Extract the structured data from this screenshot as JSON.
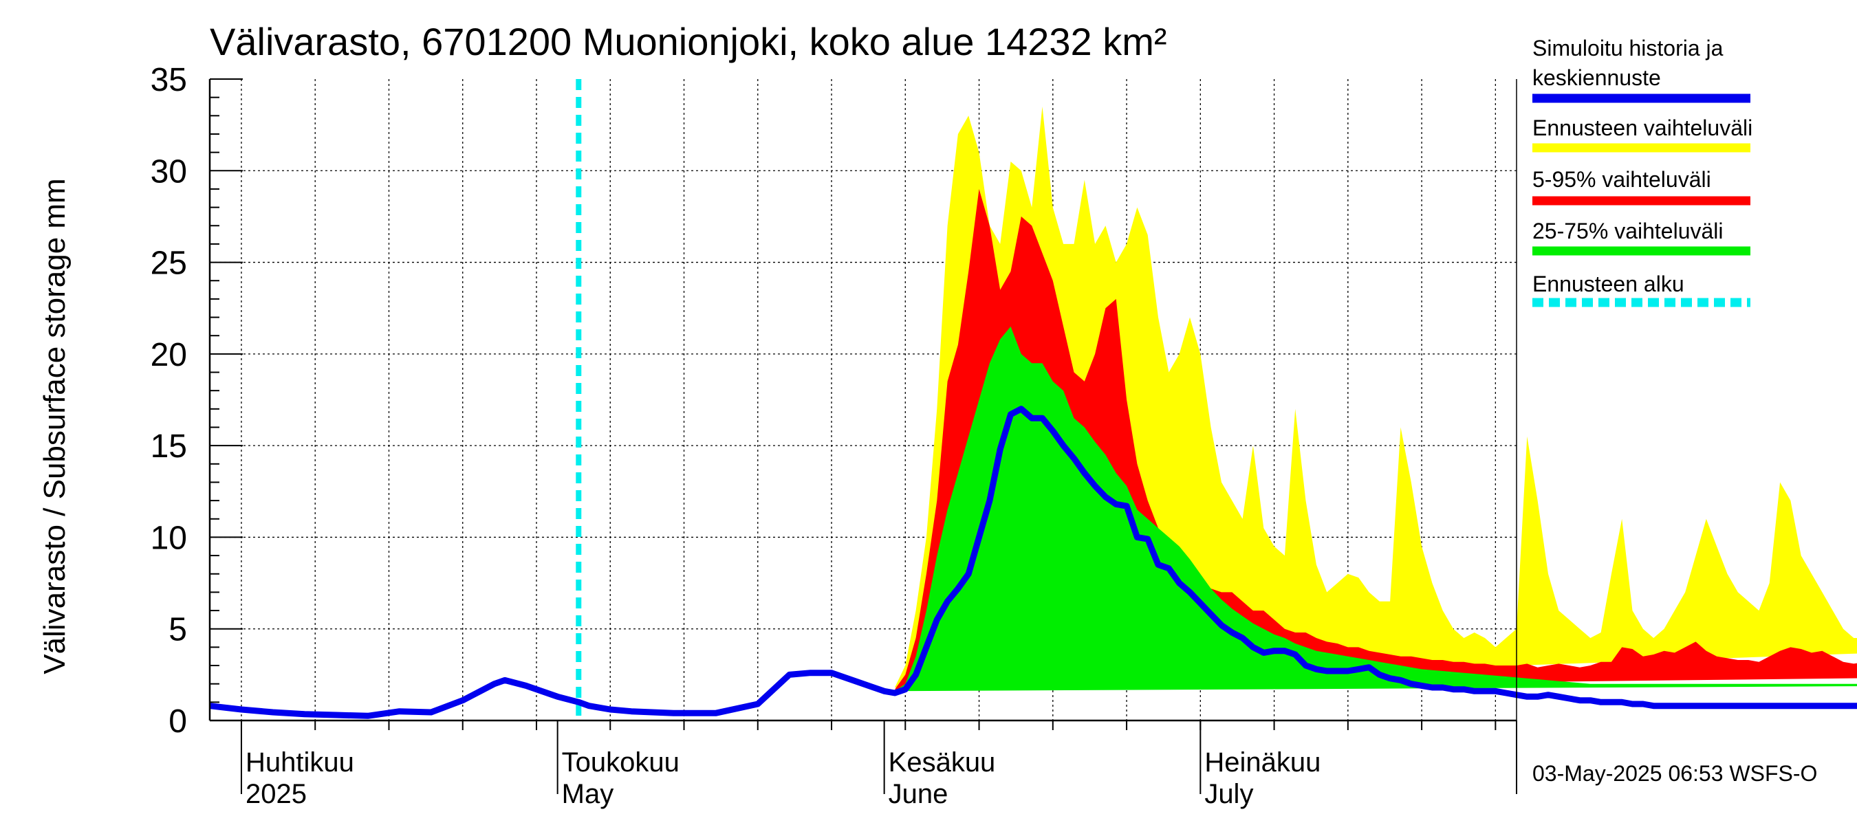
{
  "chart_data": {
    "type": "area",
    "title": "Välivarasto, 6701200 Muonionjoki, koko alue 14232 km²",
    "ylabel": "Välivarasto / Subsurface storage  mm",
    "ylim": [
      0,
      35
    ],
    "yticks": [
      0,
      5,
      10,
      15,
      20,
      25,
      30,
      35
    ],
    "grid": true,
    "legend_placement": "right",
    "x_range": [
      "2025-03-29",
      "2025-07-31"
    ],
    "forecast_start": "2025-05-03",
    "month_labels": [
      {
        "date": "2025-04-01",
        "line1": "Huhtikuu",
        "line2": "2025"
      },
      {
        "date": "2025-05-01",
        "line1": "Toukokuu",
        "line2": "May"
      },
      {
        "date": "2025-06-01",
        "line1": "Kesäkuu",
        "line2": "June"
      },
      {
        "date": "2025-07-01",
        "line1": "Heinäkuu",
        "line2": "July"
      }
    ],
    "legend": [
      {
        "label_lines": [
          "Simuloitu historia ja",
          "keskiennuste"
        ],
        "color": "#0000ee",
        "style": "solid"
      },
      {
        "label_lines": [
          "Ennusteen vaihteluväli"
        ],
        "color": "#ffff00",
        "style": "solid"
      },
      {
        "label_lines": [
          "5-95% vaihteluväli"
        ],
        "color": "#ff0000",
        "style": "solid"
      },
      {
        "label_lines": [
          "25-75% vaihteluväli"
        ],
        "color": "#00ee00",
        "style": "solid"
      },
      {
        "label_lines": [
          "Ennusteen alku"
        ],
        "color": "#00eeee",
        "style": "dashed"
      }
    ],
    "colors": {
      "median": "#0000ee",
      "full_range": "#ffff00",
      "p5_95": "#ff0000",
      "p25_75": "#00ee00",
      "forecast_start": "#00eeee"
    },
    "history": {
      "days": [
        0,
        3,
        6,
        9,
        12,
        15,
        18,
        21,
        24,
        27,
        28,
        30,
        33,
        35,
        36,
        38,
        40,
        44,
        48,
        52,
        55,
        57,
        59,
        61,
        63,
        64,
        65
      ],
      "values": [
        0.8,
        0.6,
        0.45,
        0.35,
        0.3,
        0.25,
        0.5,
        0.45,
        1.1,
        2.0,
        2.2,
        1.9,
        1.3,
        1.0,
        0.8,
        0.6,
        0.5,
        0.4,
        0.4,
        0.9,
        2.5,
        2.6,
        2.6,
        2.2,
        1.8,
        1.6,
        1.5
      ]
    },
    "forecast_days": [
      65,
      66,
      67,
      68,
      69,
      70,
      71,
      72,
      73,
      74,
      75,
      76,
      77,
      78,
      79,
      80,
      81,
      82,
      83,
      84,
      85,
      86,
      87,
      88,
      89,
      90,
      91,
      92,
      93,
      94,
      95,
      96,
      97,
      98,
      99,
      100,
      101,
      102,
      103,
      104,
      105,
      106,
      107,
      108,
      109,
      110,
      111,
      112,
      113,
      114,
      115,
      116,
      117,
      118,
      119,
      120,
      121,
      122,
      123,
      124,
      125,
      126,
      127,
      128,
      129,
      130,
      131,
      132,
      133,
      134,
      135,
      136,
      137,
      138,
      139,
      140,
      141,
      142,
      143,
      144,
      145,
      146,
      147,
      148,
      149,
      150,
      151,
      152,
      153,
      154,
      155,
      156,
      157,
      158,
      159,
      160,
      161,
      162,
      163,
      164,
      165,
      166,
      167,
      168,
      169,
      170,
      171,
      172,
      173,
      174,
      175,
      176,
      177,
      178,
      179,
      180,
      181,
      182,
      183,
      184,
      185,
      186,
      187,
      188,
      189,
      190,
      191,
      192,
      193,
      194,
      195,
      196,
      197,
      198,
      199,
      200,
      201,
      202,
      203,
      204
    ],
    "median": [
      1.5,
      1.7,
      2.5,
      4.0,
      5.5,
      6.5,
      7.2,
      8.0,
      10.0,
      12.0,
      14.8,
      16.7,
      17.0,
      16.5,
      16.5,
      15.8,
      15.0,
      14.3,
      13.5,
      12.8,
      12.2,
      11.8,
      11.7,
      10.0,
      9.9,
      8.5,
      8.3,
      7.5,
      7.0,
      6.4,
      5.8,
      5.2,
      4.8,
      4.5,
      4.0,
      3.7,
      3.8,
      3.8,
      3.6,
      3.0,
      2.8,
      2.7,
      2.7,
      2.7,
      2.8,
      2.9,
      2.5,
      2.3,
      2.2,
      2.0,
      1.9,
      1.8,
      1.8,
      1.7,
      1.7,
      1.6,
      1.6,
      1.6,
      1.5,
      1.4,
      1.3,
      1.3,
      1.4,
      1.3,
      1.2,
      1.1,
      1.1,
      1.0,
      1.0,
      1.0,
      0.9,
      0.9,
      0.8,
      0.8,
      0.8,
      0.8,
      0.8,
      0.8,
      0.8,
      0.8,
      0.8,
      0.8,
      0.8,
      0.8,
      0.8,
      0.8,
      0.8,
      0.8,
      0.8,
      0.8,
      0.8,
      0.8,
      0.8,
      0.8,
      0.8,
      0.8,
      0.8,
      0.8,
      0.8,
      0.8,
      0.8,
      0.8,
      0.8,
      0.8,
      0.8,
      0.8,
      0.8,
      0.8,
      0.8,
      0.8,
      0.8,
      0.8,
      0.8,
      0.8,
      0.8,
      0.8,
      0.8,
      0.8,
      0.8,
      0.8,
      0.8,
      0.8,
      0.8,
      0.8,
      0.8,
      0.8,
      0.8,
      0.8,
      0.8,
      0.8,
      0.8,
      0.8,
      0.8,
      0.8,
      0.8,
      0.8
    ],
    "p25": [
      1.5,
      1.5,
      1.7,
      2.0,
      2.3,
      2.5,
      2.8,
      3.0,
      3.5,
      4.5,
      6.0,
      7.5,
      8.5,
      9.0,
      9.0,
      8.5,
      8.0,
      7.0,
      6.5,
      6.0,
      5.5,
      5.0,
      4.5,
      4.0,
      3.6,
      3.2,
      2.9,
      2.6,
      2.3,
      2.1,
      1.9,
      1.7,
      1.6,
      1.5,
      1.4,
      1.3,
      1.2,
      1.2,
      1.1,
      1.0,
      1.0,
      0.95,
      0.9,
      0.9,
      0.85,
      0.85,
      0.8,
      0.78,
      0.75,
      0.72,
      0.7,
      0.68,
      0.66,
      0.64,
      0.62,
      0.6,
      0.58,
      0.56,
      0.55,
      0.54,
      0.53,
      0.52,
      0.51,
      0.5,
      0.49,
      0.48,
      0.47,
      0.46,
      0.45,
      0.45,
      0.44,
      0.44,
      0.43,
      0.43,
      0.42,
      0.42,
      0.42,
      0.41,
      0.41,
      0.41,
      0.4,
      0.4,
      0.4,
      0.4,
      0.4,
      0.4,
      0.4,
      0.4,
      0.4,
      0.4,
      0.4,
      0.4,
      0.4,
      0.4,
      0.4,
      0.4,
      0.4,
      0.4,
      0.4,
      0.4,
      0.4,
      0.4,
      0.4,
      0.4,
      0.4,
      0.4,
      0.4,
      0.4,
      0.4,
      0.4,
      0.4,
      0.4,
      0.4,
      0.4,
      0.4,
      0.4,
      0.4,
      0.4,
      0.4,
      0.4,
      0.4,
      0.4,
      0.4,
      0.4,
      0.4,
      0.4,
      0.4,
      0.4,
      0.4,
      0.4,
      0.4,
      0.4,
      0.4,
      0.4,
      0.4,
      0.4
    ],
    "p75": [
      1.6,
      2.0,
      3.5,
      6.0,
      9.0,
      11.5,
      13.5,
      15.5,
      17.5,
      19.5,
      20.8,
      21.5,
      20.0,
      19.5,
      19.5,
      18.5,
      18.0,
      16.5,
      16.0,
      15.2,
      14.5,
      13.5,
      12.8,
      11.5,
      11.0,
      10.5,
      10.0,
      9.5,
      8.8,
      8.0,
      7.2,
      6.6,
      6.1,
      5.7,
      5.3,
      5.0,
      4.7,
      4.5,
      4.2,
      4.0,
      3.8,
      3.7,
      3.6,
      3.5,
      3.4,
      3.3,
      3.2,
      3.1,
      3.0,
      2.9,
      2.8,
      2.75,
      2.7,
      2.65,
      2.6,
      2.55,
      2.5,
      2.45,
      2.4,
      2.35,
      2.3,
      2.25,
      2.2,
      2.15,
      2.1,
      2.05,
      2.0,
      2.0,
      2.0,
      2.0,
      2.0,
      2.0,
      2.0,
      2.0,
      2.0,
      2.0,
      2.0,
      2.0,
      2.0,
      2.0,
      2.0,
      2.0,
      2.0,
      2.0,
      2.0,
      2.0,
      2.0,
      2.0,
      2.0,
      2.0,
      2.0,
      2.0,
      2.0,
      2.0,
      2.0,
      2.0,
      2.0,
      2.0,
      2.0,
      2.0,
      2.0,
      2.0,
      2.0,
      2.0,
      2.0,
      2.0,
      2.0,
      2.0,
      2.0,
      2.0,
      2.0,
      2.0,
      2.0,
      2.0,
      2.0,
      2.0,
      2.0,
      2.0,
      2.0,
      2.0,
      2.0,
      2.0,
      2.0,
      2.0,
      2.0,
      2.0,
      2.0,
      2.0,
      2.0,
      2.0,
      2.0,
      2.0,
      2.0,
      2.0,
      2.0,
      2.0
    ],
    "p5": [
      1.4,
      1.3,
      1.4,
      1.5,
      1.6,
      1.7,
      1.8,
      1.9,
      2.0,
      2.0,
      2.1,
      2.2,
      2.2,
      2.3,
      2.4,
      2.5,
      2.6,
      5.0,
      5.8,
      6.2,
      6.0,
      5.5,
      5.0,
      4.3,
      3.6,
      3.0,
      2.5,
      2.1,
      1.8,
      1.5,
      1.3,
      1.1,
      1.0,
      0.9,
      0.8,
      0.75,
      0.7,
      0.65,
      0.6,
      0.55,
      0.5,
      0.45,
      0.4,
      0.38,
      0.36,
      0.34,
      0.32,
      0.3,
      0.28,
      0.26,
      0.25,
      0.24,
      0.23,
      0.22,
      0.21,
      0.2,
      0.2,
      0.2,
      0.2,
      0.2,
      0.2,
      0.2,
      0.2,
      0.2,
      0.2,
      0.2,
      0.2,
      0.2,
      0.2,
      0.2,
      0.2,
      0.2,
      0.2,
      0.2,
      0.2,
      0.2,
      0.2,
      0.2,
      0.2,
      0.2,
      0.2,
      0.2,
      0.2,
      0.2,
      0.2,
      0.2,
      0.2,
      0.2,
      0.2,
      0.2,
      0.2,
      0.2,
      0.2,
      0.2,
      0.2,
      0.2,
      0.2,
      0.2,
      0.2,
      0.2,
      0.2,
      0.2,
      0.2,
      0.2,
      0.2,
      0.2,
      0.2,
      0.2,
      0.2,
      0.2,
      0.2,
      0.2,
      0.2,
      0.2,
      0.2,
      0.2,
      0.2,
      0.2,
      0.2,
      0.2,
      0.2,
      0.2,
      0.2,
      0.2,
      0.2,
      0.2,
      0.2,
      0.2,
      0.2,
      0.2,
      0.2,
      0.2,
      0.2,
      0.2,
      0.2,
      0.2
    ],
    "p95": [
      1.7,
      2.5,
      4.5,
      8.0,
      12.0,
      18.5,
      20.5,
      24.5,
      29.0,
      27.0,
      23.5,
      24.5,
      27.5,
      27.0,
      25.5,
      24.0,
      21.5,
      19.0,
      18.5,
      20.0,
      22.5,
      23.0,
      17.5,
      14.0,
      12.0,
      10.5,
      9.8,
      9.2,
      8.5,
      7.8,
      7.2,
      7.0,
      7.0,
      6.5,
      6.0,
      6.0,
      5.5,
      5.0,
      4.8,
      4.8,
      4.5,
      4.3,
      4.2,
      4.0,
      4.0,
      3.8,
      3.7,
      3.6,
      3.5,
      3.5,
      3.4,
      3.3,
      3.3,
      3.2,
      3.2,
      3.1,
      3.1,
      3.0,
      3.0,
      3.0,
      3.1,
      2.9,
      3.0,
      3.1,
      3.0,
      2.9,
      3.0,
      3.2,
      3.2,
      4.0,
      3.9,
      3.5,
      3.6,
      3.8,
      3.7,
      4.0,
      4.3,
      3.8,
      3.5,
      3.4,
      3.3,
      3.3,
      3.2,
      3.5,
      3.8,
      4.0,
      3.9,
      3.7,
      3.8,
      3.5,
      3.2,
      3.1,
      3.2,
      3.0,
      3.0,
      2.9,
      2.8,
      2.7,
      2.7,
      2.6,
      2.6,
      2.6,
      2.6,
      2.6,
      2.6,
      2.6,
      2.6,
      2.6,
      2.6,
      2.6,
      2.6,
      2.6,
      2.6,
      2.6,
      2.6,
      2.6,
      2.6,
      2.6,
      2.6,
      2.6,
      2.6,
      2.6,
      2.6,
      2.6,
      2.6,
      2.6,
      2.6,
      2.6,
      2.6,
      2.6,
      2.6,
      2.6,
      2.6,
      2.6,
      2.6,
      2.6
    ],
    "min": [
      1.3,
      1.2,
      1.2,
      1.3,
      1.4,
      1.5,
      1.5,
      1.6,
      1.6,
      1.7,
      1.8,
      1.9,
      2.0,
      2.0,
      2.1,
      2.2,
      2.3,
      4.5,
      5.5,
      6.0,
      5.8,
      5.2,
      4.6,
      3.8,
      3.2,
      2.6,
      2.1,
      1.7,
      1.4,
      1.2,
      1.0,
      0.9,
      0.8,
      0.7,
      0.6,
      0.55,
      0.5,
      0.45,
      0.4,
      0.38,
      0.35,
      0.32,
      0.3,
      0.28,
      0.26,
      0.24,
      0.22,
      0.2,
      0.18,
      0.16,
      0.15,
      0.14,
      0.13,
      0.12,
      0.11,
      0.1,
      0.1,
      0.1,
      0.1,
      0.1,
      0.1,
      0.1,
      0.1,
      0.1,
      0.1,
      0.1,
      0.1,
      0.1,
      0.1,
      0.1,
      0.1,
      0.1,
      0.1,
      0.1,
      0.1,
      0.1,
      0.1,
      0.1,
      0.1,
      0.1,
      0.1,
      0.1,
      0.1,
      0.1,
      0.1,
      0.1,
      0.1,
      0.1,
      0.1,
      0.1,
      0.1,
      0.1,
      0.1,
      0.1,
      0.1,
      0.1,
      0.1,
      0.1,
      0.1,
      0.1,
      0.1,
      0.1,
      0.1,
      0.1,
      0.1,
      0.1,
      0.1,
      0.1,
      0.1,
      0.1,
      0.1,
      0.1,
      0.1,
      0.1,
      0.1,
      0.1,
      0.1,
      0.1,
      0.1,
      0.1,
      0.1,
      0.1,
      0.1,
      0.1,
      0.1,
      0.1,
      0.1,
      0.1,
      0.1,
      0.1,
      0.1,
      0.1,
      0.1,
      0.1,
      0.1,
      0.1
    ],
    "max": [
      1.8,
      3.0,
      6.0,
      10.0,
      17.0,
      27.0,
      32.0,
      33.0,
      31.0,
      27.0,
      26.0,
      30.5,
      30.0,
      28.0,
      33.5,
      28.0,
      26.0,
      26.0,
      29.5,
      26.0,
      27.0,
      25.0,
      26.0,
      28.0,
      26.5,
      22.0,
      19.0,
      20.0,
      22.0,
      20.0,
      16.0,
      13.0,
      12.0,
      11.0,
      15.0,
      10.5,
      9.5,
      9.0,
      17.0,
      12.0,
      8.5,
      7.0,
      7.5,
      8.0,
      7.8,
      7.0,
      6.5,
      6.5,
      16.0,
      13.0,
      9.5,
      7.5,
      6.0,
      5.0,
      4.5,
      4.8,
      4.5,
      4.0,
      4.5,
      5.0,
      15.5,
      12.0,
      8.0,
      6.0,
      5.5,
      5.0,
      4.5,
      4.8,
      8.0,
      11.0,
      6.0,
      5.0,
      4.5,
      5.0,
      6.0,
      7.0,
      9.0,
      11.0,
      9.5,
      8.0,
      7.0,
      6.5,
      6.0,
      7.5,
      13.0,
      12.0,
      9.0,
      8.0,
      7.0,
      6.0,
      5.0,
      4.5,
      4.5,
      5.0,
      5.5,
      6.0,
      7.0,
      8.0,
      9.0,
      10.0,
      11.0,
      12.0,
      12.5,
      12.0,
      11.0,
      10.0,
      9.0,
      8.0,
      7.0,
      6.0,
      5.5,
      5.0,
      4.5,
      4.5,
      4.5,
      4.5,
      4.5,
      4.5,
      4.5,
      4.5,
      4.5,
      4.5,
      4.5,
      4.5,
      4.5,
      4.5,
      4.5,
      4.5,
      4.5,
      4.5,
      4.5,
      4.5,
      4.5,
      4.5
    ]
  },
  "footer": "03-May-2025 06:53 WSFS-O"
}
